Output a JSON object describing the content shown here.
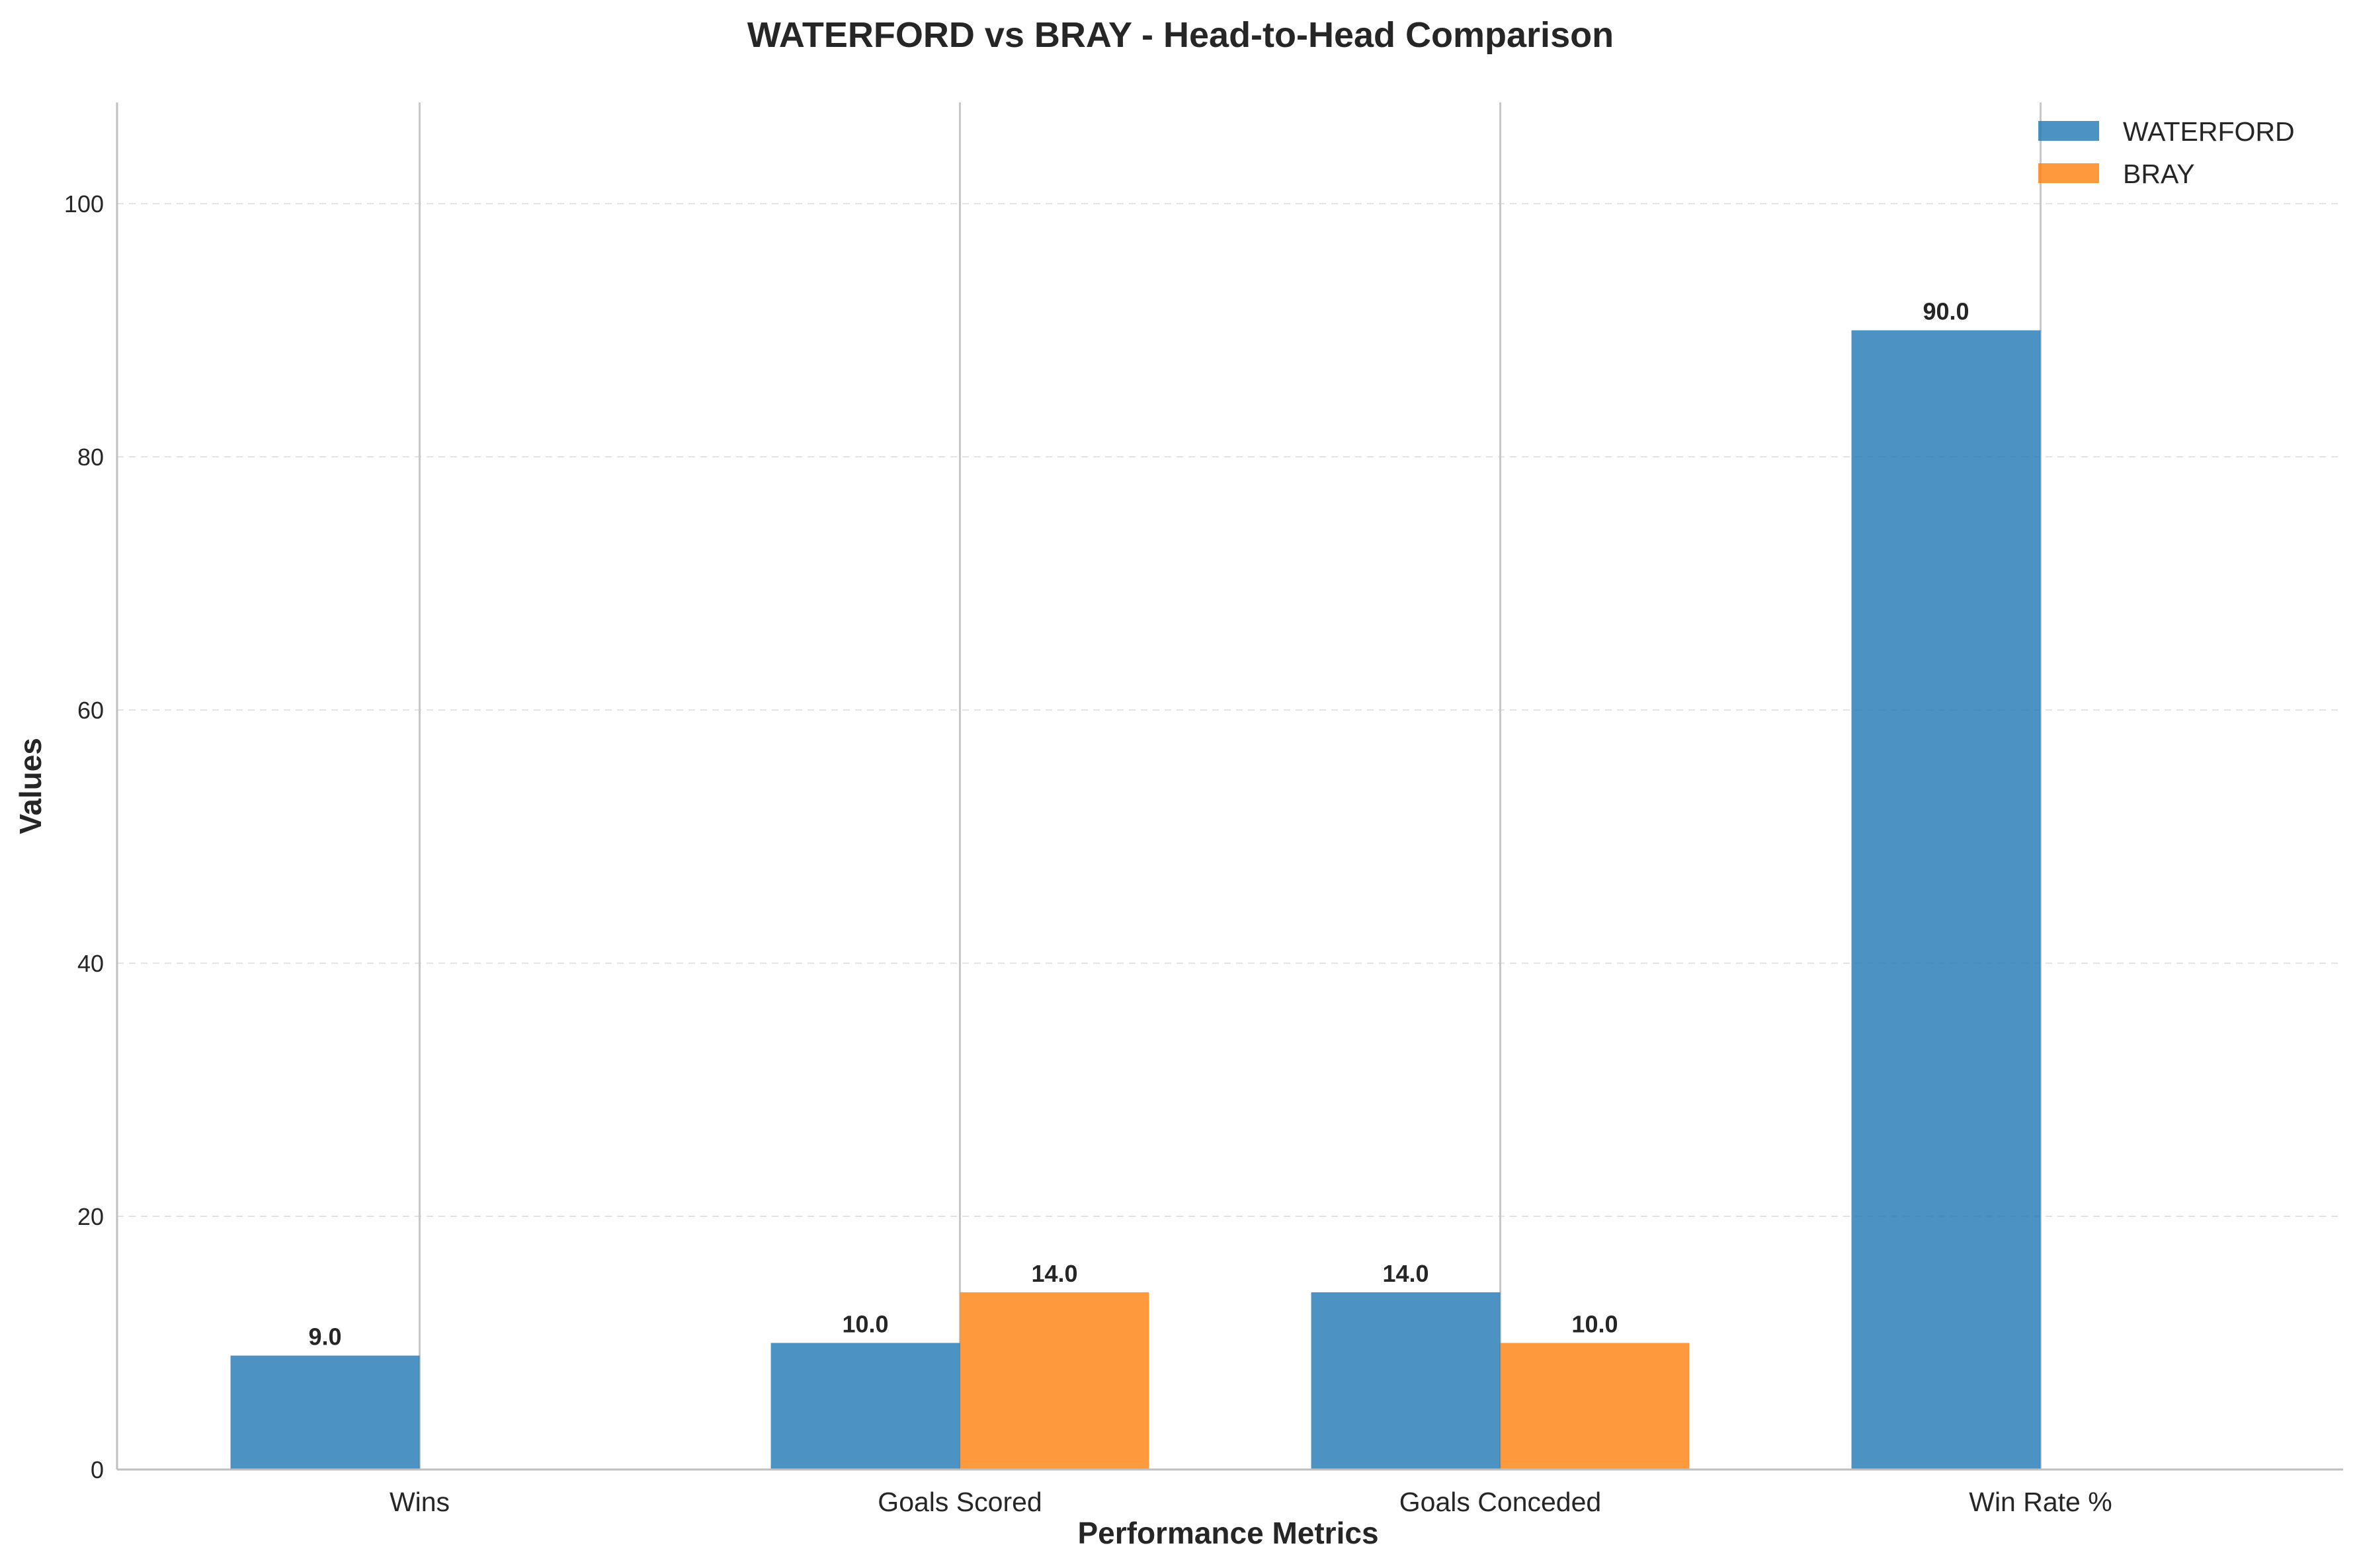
{
  "chart_data": {
    "type": "bar",
    "title": "WATERFORD vs BRAY - Head-to-Head Comparison",
    "xlabel": "Performance Metrics",
    "ylabel": "Values",
    "categories": [
      "Wins",
      "Goals Scored",
      "Goals Conceded",
      "Win Rate %"
    ],
    "series": [
      {
        "name": "WATERFORD",
        "color": "#1f77b4",
        "values": [
          9.0,
          10.0,
          14.0,
          90.0
        ]
      },
      {
        "name": "BRAY",
        "color": "#ff7f0e",
        "values": [
          0.0,
          14.0,
          10.0,
          0.0
        ]
      }
    ],
    "ylim": [
      0,
      108
    ],
    "yticks": [
      0,
      20,
      40,
      60,
      80,
      100
    ],
    "grid": "y dashed",
    "legend_position": "top-right",
    "value_labels": true
  }
}
